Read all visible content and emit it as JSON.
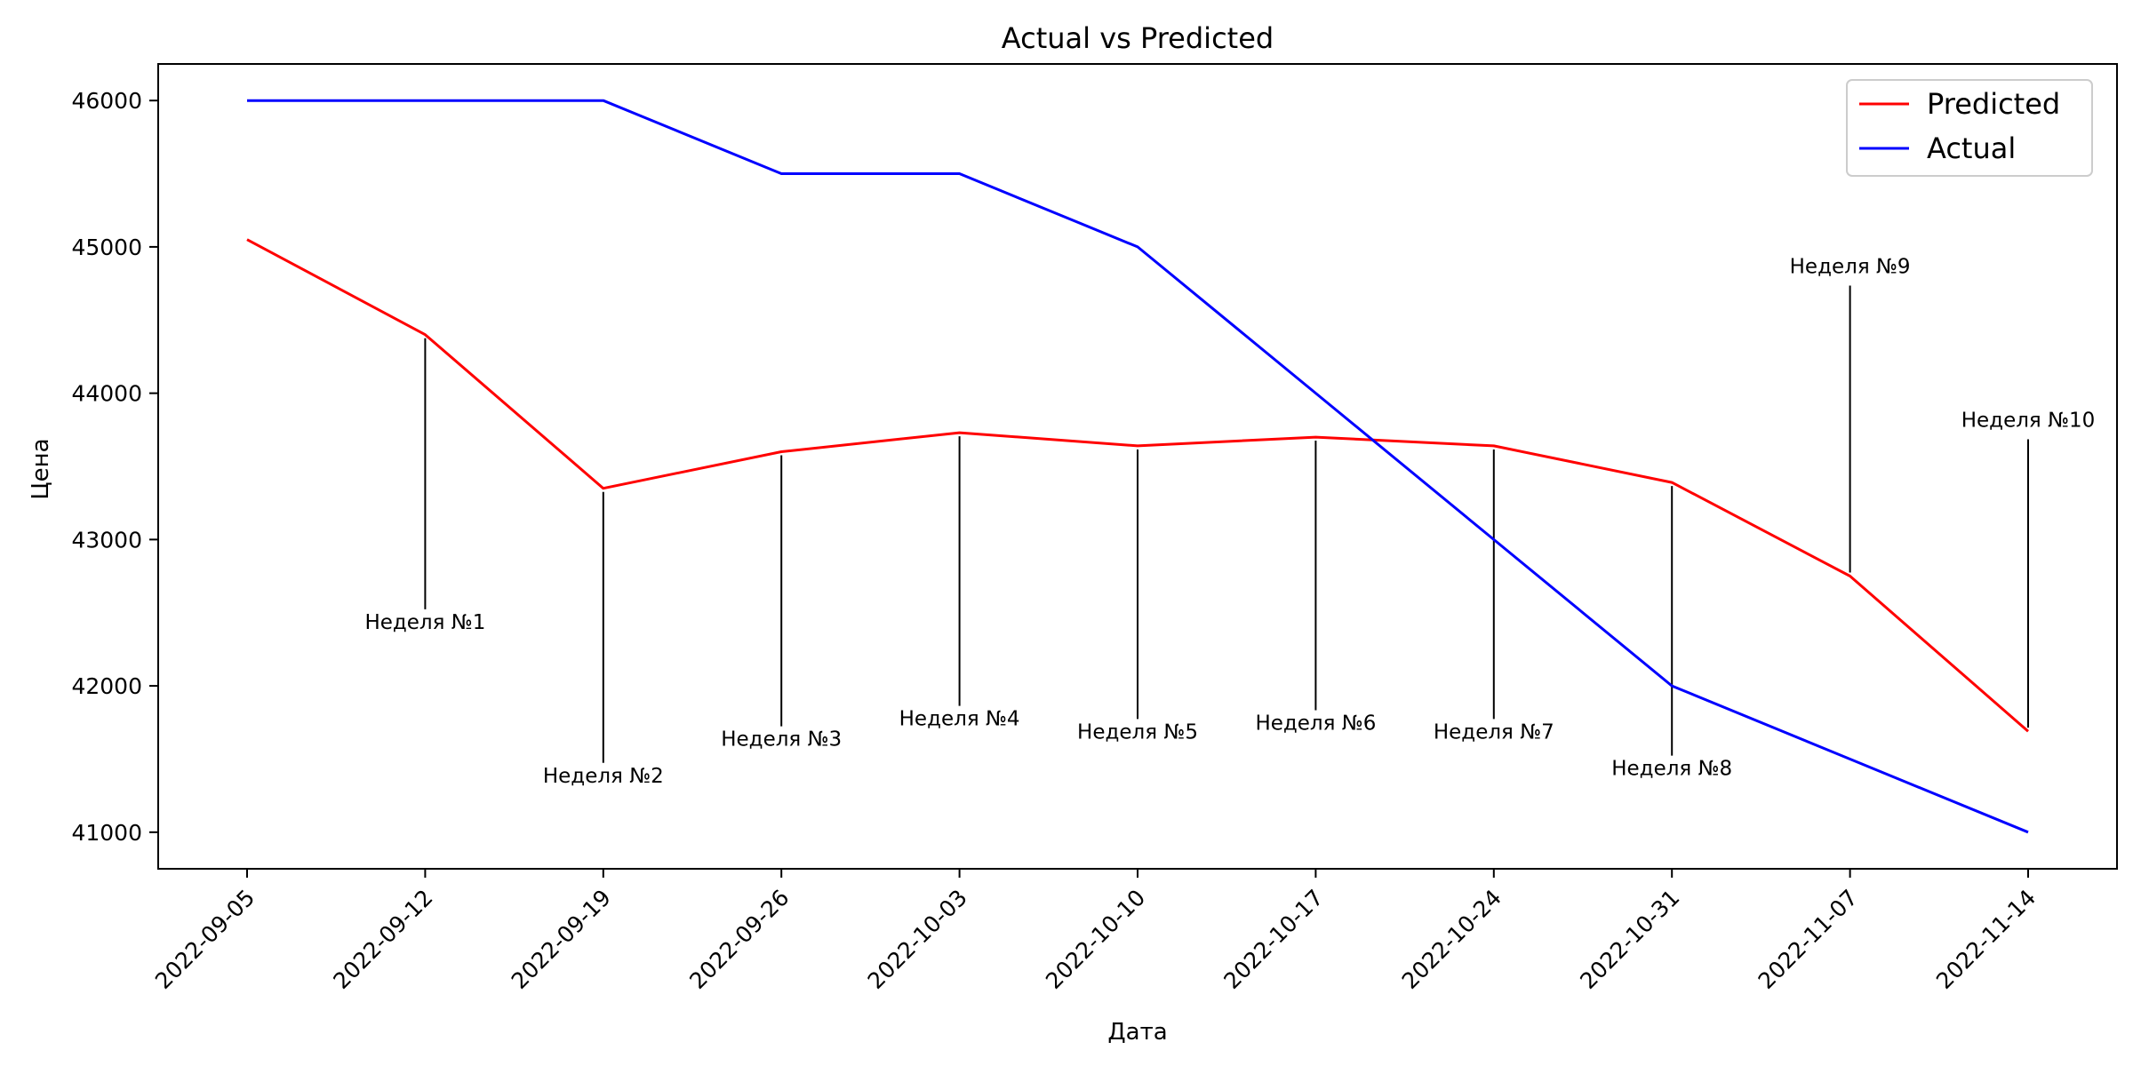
{
  "chart_data": {
    "type": "line",
    "title": "Actual vs Predicted",
    "xlabel": "Дата",
    "ylabel": "Цена",
    "x": [
      "2022-09-05",
      "2022-09-12",
      "2022-09-19",
      "2022-09-26",
      "2022-10-03",
      "2022-10-10",
      "2022-10-17",
      "2022-10-24",
      "2022-10-31",
      "2022-11-07",
      "2022-11-14"
    ],
    "yticks": [
      41000,
      42000,
      43000,
      44000,
      45000,
      46000
    ],
    "ylim": [
      40750,
      46250
    ],
    "grid": false,
    "legend_position": "top-right",
    "series": [
      {
        "name": "Predicted",
        "color": "#ff0000",
        "values": [
          45050,
          44400,
          43350,
          43600,
          43730,
          43640,
          43700,
          43640,
          43390,
          42750,
          41690
        ]
      },
      {
        "name": "Actual",
        "color": "#0000ff",
        "values": [
          46000,
          46000,
          46000,
          45500,
          45500,
          45000,
          44000,
          43000,
          42000,
          41500,
          41000
        ]
      }
    ],
    "annotations": [
      {
        "text": "Неделя №1",
        "x": "2022-09-12",
        "y": 44400,
        "label_y": 42390
      },
      {
        "text": "Неделя №2",
        "x": "2022-09-19",
        "y": 43350,
        "label_y": 41340
      },
      {
        "text": "Неделя №3",
        "x": "2022-09-26",
        "y": 43600,
        "label_y": 41590
      },
      {
        "text": "Неделя №4",
        "x": "2022-10-03",
        "y": 43730,
        "label_y": 41730
      },
      {
        "text": "Неделя №5",
        "x": "2022-10-10",
        "y": 43640,
        "label_y": 41640
      },
      {
        "text": "Неделя №6",
        "x": "2022-10-17",
        "y": 43700,
        "label_y": 41700
      },
      {
        "text": "Неделя №7",
        "x": "2022-10-24",
        "y": 43640,
        "label_y": 41640
      },
      {
        "text": "Неделя №8",
        "x": "2022-10-31",
        "y": 43390,
        "label_y": 41390
      },
      {
        "text": "Неделя №9",
        "x": "2022-11-07",
        "y": 42750,
        "label_y": 44820
      },
      {
        "text": "Неделя №10",
        "x": "2022-11-14",
        "y": 41690,
        "label_y": 43770
      }
    ]
  }
}
